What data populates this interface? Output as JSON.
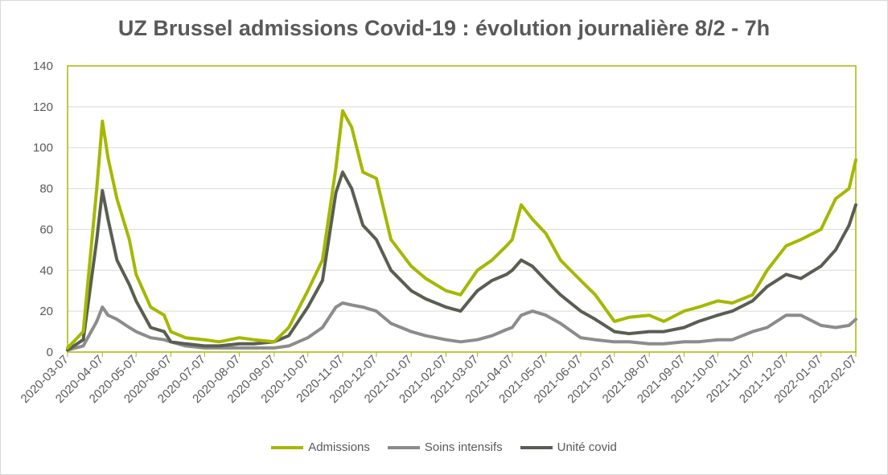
{
  "chart_data": {
    "type": "line",
    "title": "UZ Brussel admissions Covid-19 : évolution journalière 8/2 - 7h",
    "xlabel": "",
    "ylabel": "",
    "ylim": [
      0,
      140
    ],
    "yticks": [
      0,
      20,
      40,
      60,
      80,
      100,
      120,
      140
    ],
    "xticks": [
      "2020-03-07",
      "2020-04-07",
      "2020-05-07",
      "2020-06-07",
      "2020-07-07",
      "2020-08-07",
      "2020-09-07",
      "2020-10-07",
      "2020-11-07",
      "2020-12-07",
      "2021-01-07",
      "2021-02-07",
      "2021-03-07",
      "2021-04-07",
      "2021-05-07",
      "2021-06-07",
      "2021-07-07",
      "2021-08-07",
      "2021-09-07",
      "2021-10-07",
      "2021-11-07",
      "2021-12-07",
      "2022-01-07",
      "2022-02-07"
    ],
    "grid": "horizontal",
    "legend_position": "bottom",
    "x": [
      "2020-03-07",
      "2020-03-21",
      "2020-04-02",
      "2020-04-07",
      "2020-04-12",
      "2020-04-20",
      "2020-05-01",
      "2020-05-07",
      "2020-05-20",
      "2020-06-01",
      "2020-06-07",
      "2020-06-20",
      "2020-07-07",
      "2020-07-20",
      "2020-08-07",
      "2020-08-20",
      "2020-09-07",
      "2020-09-20",
      "2020-10-07",
      "2020-10-20",
      "2020-11-01",
      "2020-11-07",
      "2020-11-15",
      "2020-11-25",
      "2020-12-07",
      "2020-12-20",
      "2021-01-07",
      "2021-01-20",
      "2021-02-07",
      "2021-02-20",
      "2021-03-07",
      "2021-03-20",
      "2021-04-02",
      "2021-04-07",
      "2021-04-15",
      "2021-04-25",
      "2021-05-07",
      "2021-05-20",
      "2021-06-07",
      "2021-06-20",
      "2021-07-07",
      "2021-07-20",
      "2021-08-07",
      "2021-08-20",
      "2021-09-07",
      "2021-09-20",
      "2021-10-07",
      "2021-10-20",
      "2021-11-07",
      "2021-11-20",
      "2021-12-07",
      "2021-12-20",
      "2022-01-07",
      "2022-01-20",
      "2022-02-01",
      "2022-02-07"
    ],
    "series": [
      {
        "name": "Admissions",
        "color": "#a5b800",
        "values": [
          2,
          10,
          80,
          113,
          95,
          75,
          55,
          38,
          22,
          18,
          10,
          7,
          6,
          5,
          7,
          6,
          5,
          12,
          30,
          45,
          90,
          118,
          110,
          88,
          85,
          55,
          42,
          36,
          30,
          28,
          40,
          45,
          52,
          55,
          72,
          65,
          58,
          45,
          35,
          28,
          15,
          17,
          18,
          15,
          20,
          22,
          25,
          24,
          28,
          40,
          52,
          55,
          60,
          75,
          80,
          94
        ]
      },
      {
        "name": "Soins intensifs",
        "color": "#8c8c8c",
        "values": [
          1,
          3,
          15,
          22,
          18,
          16,
          12,
          10,
          7,
          6,
          5,
          3,
          2,
          2,
          2,
          2,
          2,
          3,
          7,
          12,
          22,
          24,
          23,
          22,
          20,
          14,
          10,
          8,
          6,
          5,
          6,
          8,
          11,
          12,
          18,
          20,
          18,
          14,
          7,
          6,
          5,
          5,
          4,
          4,
          5,
          5,
          6,
          6,
          10,
          12,
          18,
          18,
          13,
          12,
          13,
          16
        ]
      },
      {
        "name": "Unité covid",
        "color": "#5a5e52",
        "values": [
          1,
          6,
          55,
          79,
          65,
          45,
          33,
          25,
          12,
          10,
          5,
          4,
          3,
          3,
          4,
          4,
          5,
          8,
          22,
          35,
          78,
          88,
          80,
          62,
          55,
          40,
          30,
          26,
          22,
          20,
          30,
          35,
          38,
          40,
          45,
          42,
          35,
          28,
          20,
          16,
          10,
          9,
          10,
          10,
          12,
          15,
          18,
          20,
          25,
          32,
          38,
          36,
          42,
          50,
          62,
          72
        ]
      }
    ]
  }
}
